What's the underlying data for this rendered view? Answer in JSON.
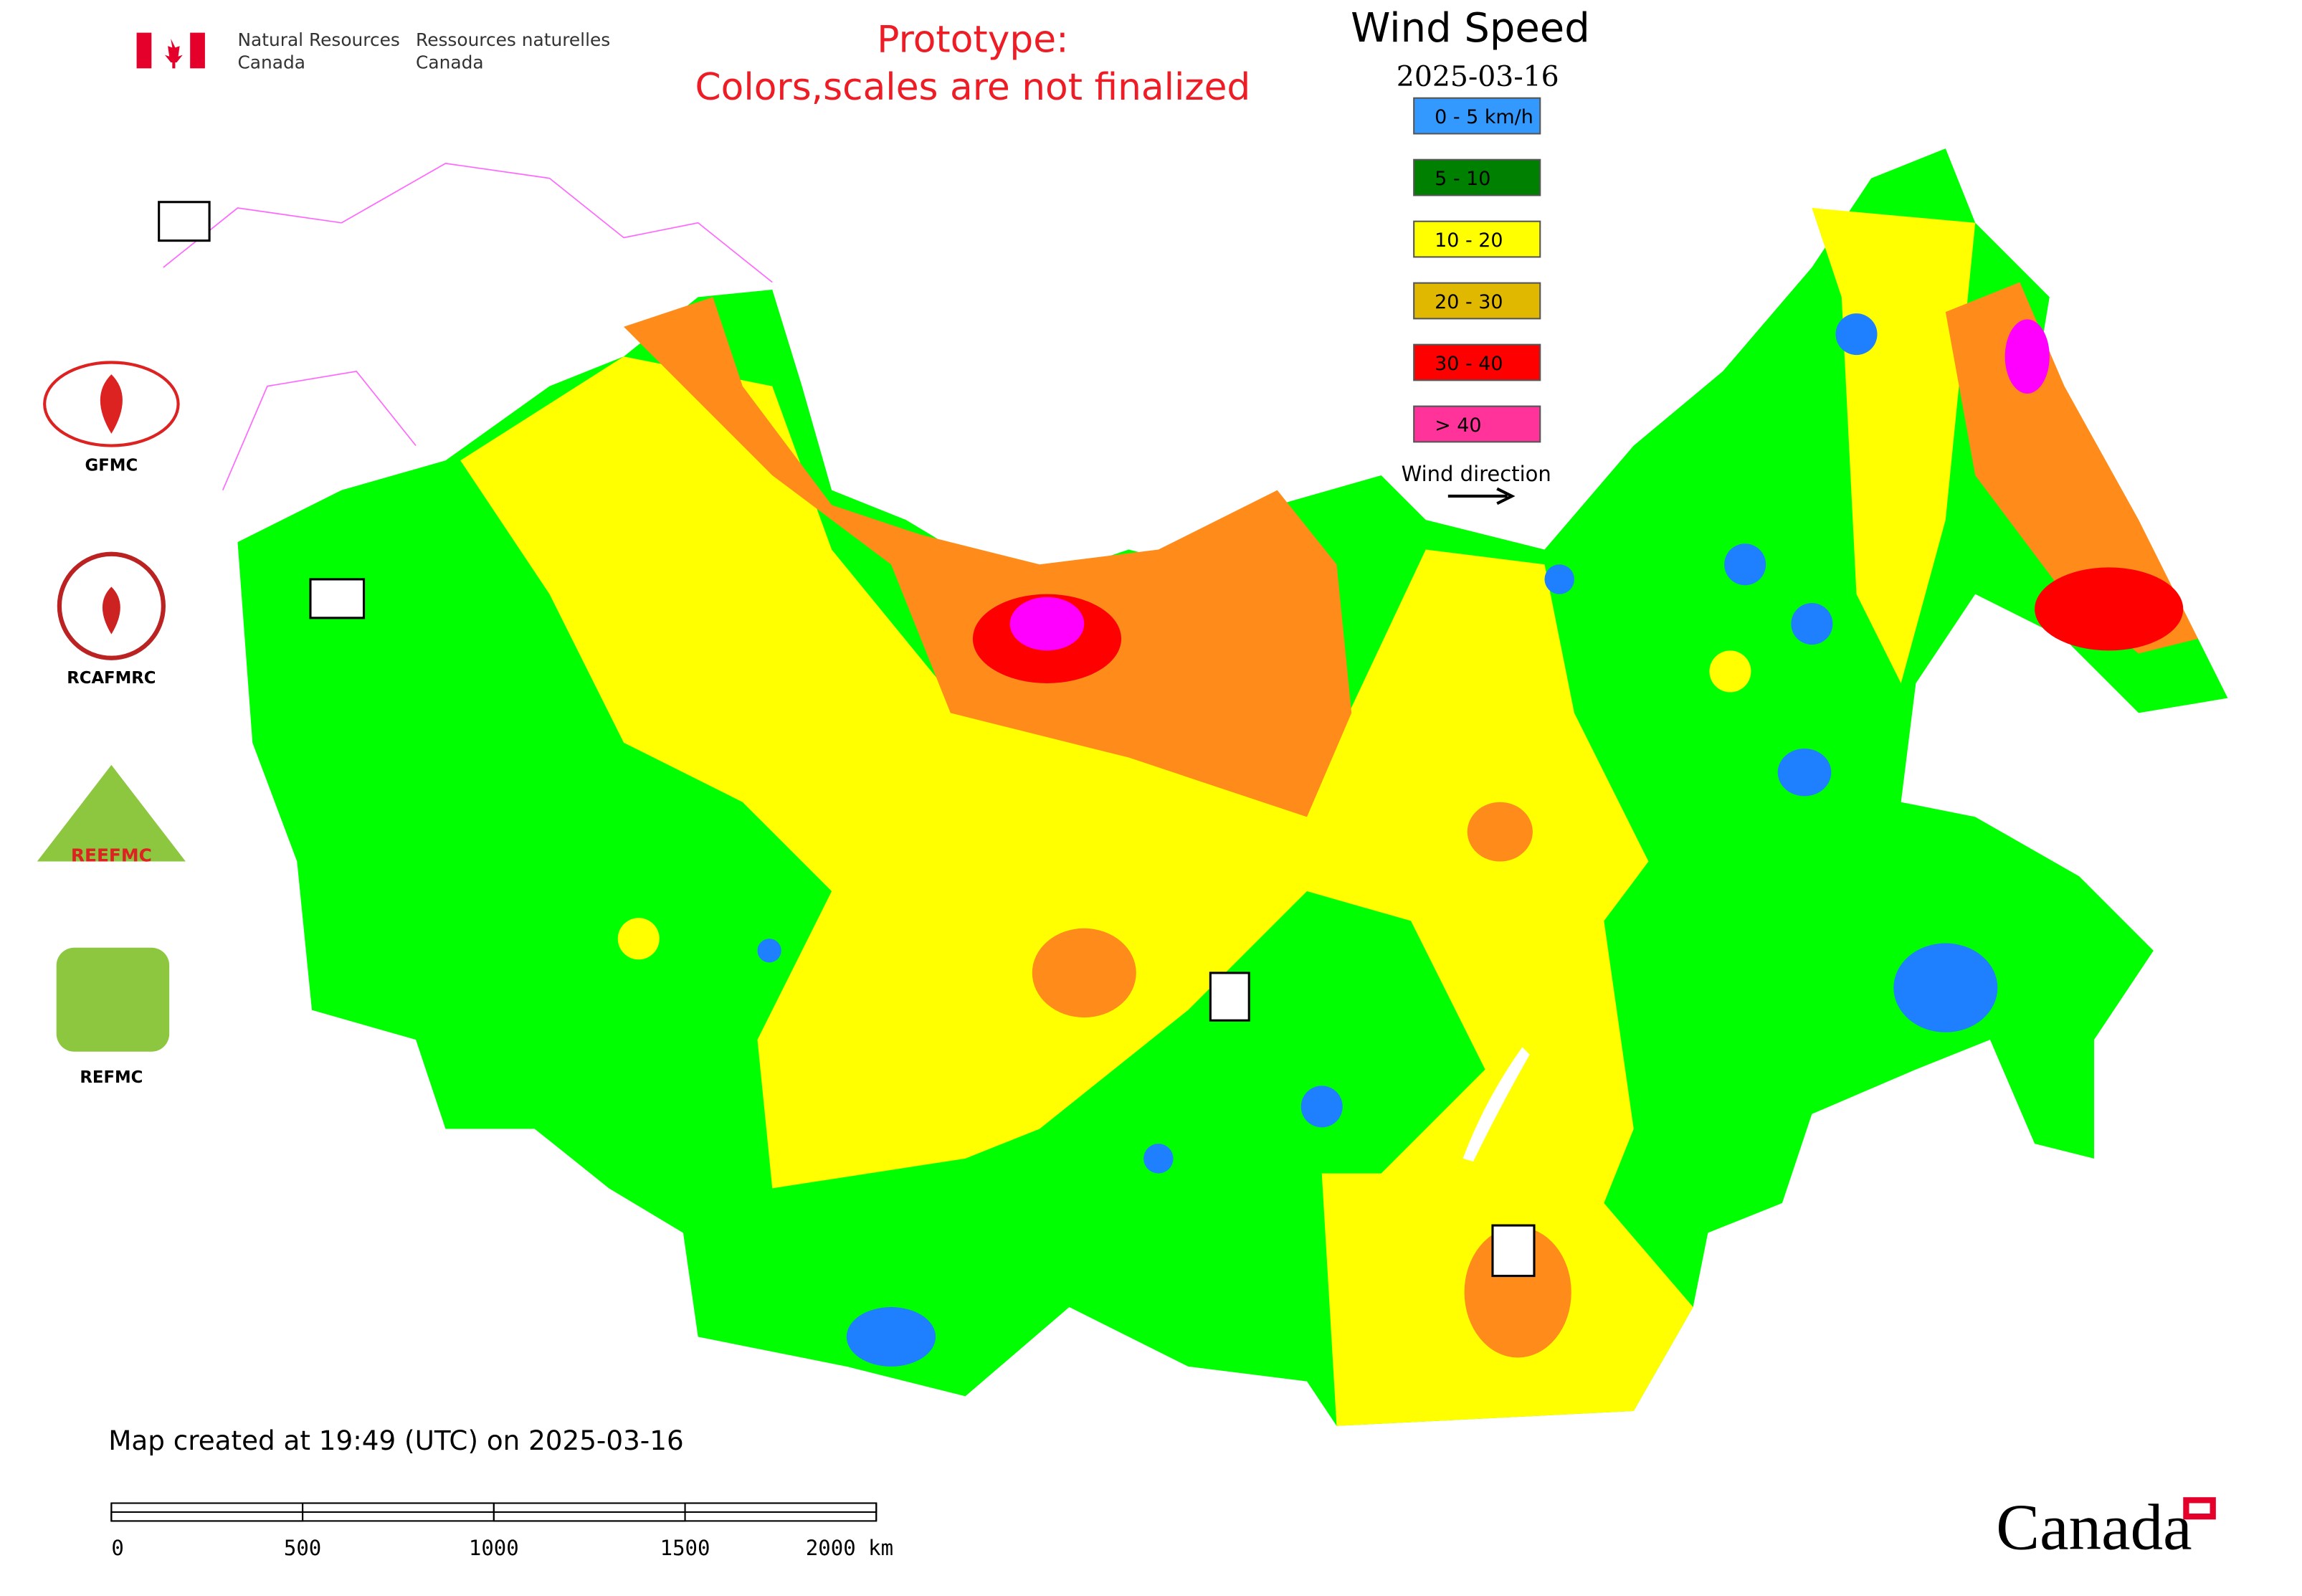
{
  "header": {
    "agency_en": [
      "Natural Resources",
      "Canada"
    ],
    "agency_fr": [
      "Ressources naturelles",
      "Canada"
    ],
    "notice": [
      "Prototype:",
      "Colors,scales are not finalized"
    ]
  },
  "legend": {
    "title": "Wind Speed",
    "date": "2025-03-16",
    "items": [
      {
        "label": "0 - 5 km/h",
        "color": "#3399ff"
      },
      {
        "label": "5 - 10",
        "color": "#008000"
      },
      {
        "label": "10 - 20",
        "color": "#ffff00"
      },
      {
        "label": "20 - 30",
        "color": "#e0b800"
      },
      {
        "label": "30 - 40",
        "color": "#ff0000"
      },
      {
        "label": "> 40",
        "color": "#ff3399"
      }
    ],
    "wind_direction": "Wind direction"
  },
  "logos": [
    {
      "label": "GFMC"
    },
    {
      "label": "RCAFMRC"
    },
    {
      "label": "REEFMC"
    },
    {
      "label": "REFMC"
    }
  ],
  "footer": {
    "created": "Map created at 19:49 (UTC) on 2025-03-16",
    "brand": "Canada"
  },
  "scale_bar": {
    "ticks": [
      0,
      500,
      1000,
      1500,
      {
        "value": 2000,
        "label": "2000 km"
      }
    ]
  }
}
